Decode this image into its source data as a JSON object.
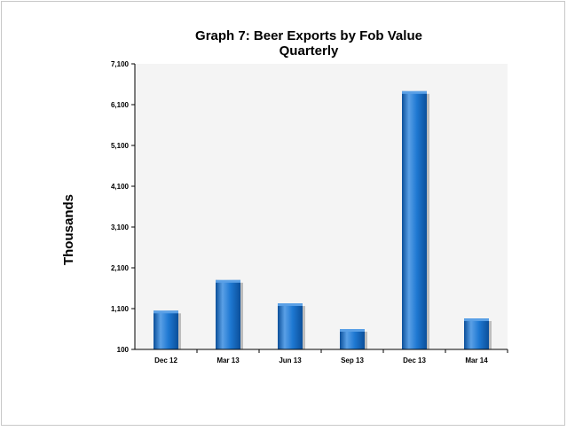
{
  "chart_data": {
    "type": "bar",
    "title": "Graph 7: Beer Exports by Fob Value",
    "subtitle": "Quarterly",
    "xlabel": "",
    "ylabel": "Thousands",
    "categories": [
      "Dec 12",
      "Mar 13",
      "Jun 13",
      "Sep 13",
      "Dec 13",
      "Mar 14"
    ],
    "values": [
      1050,
      1800,
      1230,
      600,
      6430,
      860
    ],
    "ylim": [
      100,
      7100
    ],
    "yticks": [
      100,
      1100,
      2100,
      3100,
      4100,
      5100,
      6100,
      7100
    ],
    "ytick_labels": [
      "100",
      "1,100",
      "2,100",
      "3,100",
      "4,100",
      "5,100",
      "6,100",
      "7,100"
    ],
    "grid": false,
    "legend": "none",
    "colors": {
      "bar_light": "#5aa0e6",
      "bar_mid": "#1e78d2",
      "bar_dark": "#0b4f9a",
      "plot_background": "#f4f4f4"
    }
  }
}
